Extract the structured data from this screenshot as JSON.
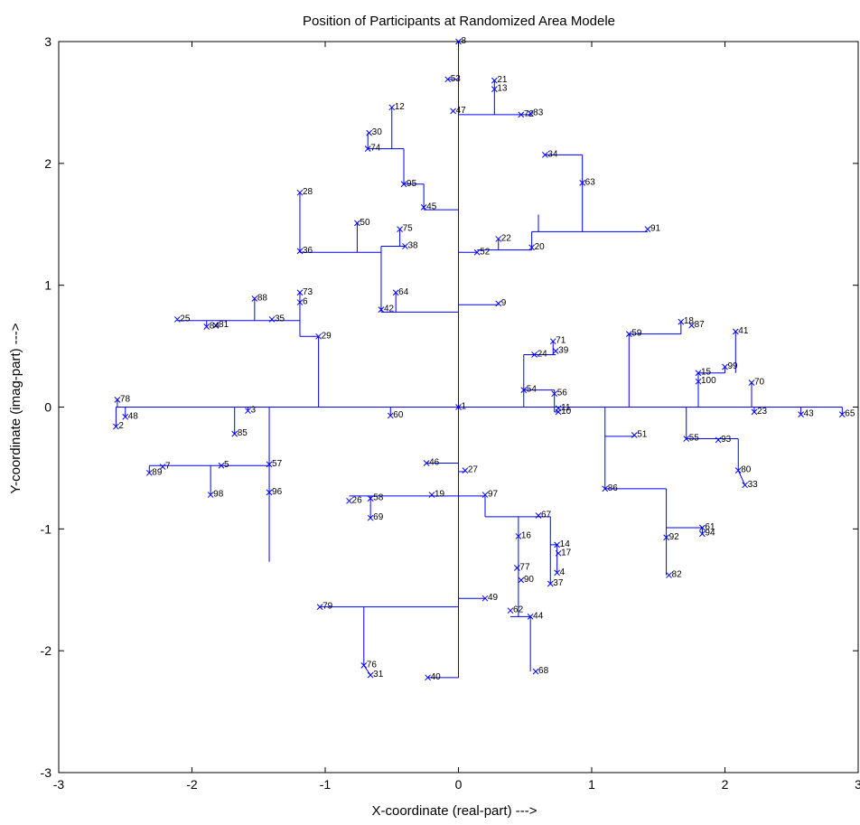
{
  "chart_data": {
    "type": "scatter",
    "title": "Position of Participants at Randomized Area Modele",
    "xlabel": "X-coordinate (real-part) --->",
    "ylabel": "Y-coordinate (imag-part) --->",
    "xlim": [
      -3,
      3
    ],
    "ylim": [
      -3,
      3
    ],
    "xticks": [
      "-3",
      "-2",
      "-1",
      "0",
      "1",
      "2",
      "3"
    ],
    "yticks": [
      "-3",
      "-2",
      "-1",
      "0",
      "1",
      "2",
      "3"
    ],
    "grid": false,
    "marker": "x",
    "series_color": "#0000ff",
    "nodes": [
      {
        "id": "1",
        "x": 0.0,
        "y": 0.0
      },
      {
        "id": "2",
        "x": -2.57,
        "y": -0.16
      },
      {
        "id": "3",
        "x": -1.58,
        "y": -0.03
      },
      {
        "id": "4",
        "x": 0.74,
        "y": -1.36
      },
      {
        "id": "5",
        "x": -1.78,
        "y": -0.48
      },
      {
        "id": "6",
        "x": -1.19,
        "y": 0.86
      },
      {
        "id": "7",
        "x": -2.22,
        "y": -0.49
      },
      {
        "id": "8",
        "x": 0.0,
        "y": 3.0
      },
      {
        "id": "9",
        "x": 0.3,
        "y": 0.85
      },
      {
        "id": "10",
        "x": 0.75,
        "y": -0.04
      },
      {
        "id": "11",
        "x": 0.75,
        "y": -0.01
      },
      {
        "id": "12",
        "x": -0.5,
        "y": 2.46
      },
      {
        "id": "13",
        "x": 0.27,
        "y": 2.61
      },
      {
        "id": "14",
        "x": 0.74,
        "y": -1.13
      },
      {
        "id": "15",
        "x": 1.8,
        "y": 0.28
      },
      {
        "id": "16",
        "x": 0.45,
        "y": -1.06
      },
      {
        "id": "17",
        "x": 0.75,
        "y": -1.2
      },
      {
        "id": "18",
        "x": 1.67,
        "y": 0.7
      },
      {
        "id": "19",
        "x": -0.2,
        "y": -0.72
      },
      {
        "id": "20",
        "x": 0.55,
        "y": 1.31
      },
      {
        "id": "21",
        "x": 0.27,
        "y": 2.68
      },
      {
        "id": "22",
        "x": 0.3,
        "y": 1.38
      },
      {
        "id": "23",
        "x": 2.22,
        "y": -0.04
      },
      {
        "id": "24",
        "x": 0.57,
        "y": 0.43
      },
      {
        "id": "25",
        "x": -2.11,
        "y": 0.72
      },
      {
        "id": "26",
        "x": -0.82,
        "y": -0.77
      },
      {
        "id": "27",
        "x": 0.05,
        "y": -0.52
      },
      {
        "id": "28",
        "x": -1.19,
        "y": 1.76
      },
      {
        "id": "29",
        "x": -1.05,
        "y": 0.58
      },
      {
        "id": "30",
        "x": -0.67,
        "y": 2.25
      },
      {
        "id": "31",
        "x": -0.66,
        "y": -2.2
      },
      {
        "id": "33",
        "x": 2.15,
        "y": -0.64
      },
      {
        "id": "34",
        "x": 0.65,
        "y": 2.07
      },
      {
        "id": "35",
        "x": -1.4,
        "y": 0.72
      },
      {
        "id": "36",
        "x": -1.19,
        "y": 1.28
      },
      {
        "id": "37",
        "x": 0.69,
        "y": -1.45
      },
      {
        "id": "38",
        "x": -0.4,
        "y": 1.32
      },
      {
        "id": "39",
        "x": 0.73,
        "y": 0.46
      },
      {
        "id": "40",
        "x": -0.23,
        "y": -2.22
      },
      {
        "id": "41",
        "x": 2.08,
        "y": 0.62
      },
      {
        "id": "42",
        "x": -0.58,
        "y": 0.8
      },
      {
        "id": "43",
        "x": 2.57,
        "y": -0.06
      },
      {
        "id": "44",
        "x": 0.54,
        "y": -1.72
      },
      {
        "id": "45",
        "x": -0.26,
        "y": 1.64
      },
      {
        "id": "46",
        "x": -0.24,
        "y": -0.46
      },
      {
        "id": "47",
        "x": -0.04,
        "y": 2.43
      },
      {
        "id": "48",
        "x": -2.5,
        "y": -0.08
      },
      {
        "id": "49",
        "x": 0.2,
        "y": -1.57
      },
      {
        "id": "50",
        "x": -0.76,
        "y": 1.51
      },
      {
        "id": "51",
        "x": 1.32,
        "y": -0.23
      },
      {
        "id": "52",
        "x": 0.14,
        "y": 1.27
      },
      {
        "id": "53",
        "x": -0.08,
        "y": 2.69
      },
      {
        "id": "54",
        "x": 0.49,
        "y": 0.14
      },
      {
        "id": "55",
        "x": 1.71,
        "y": -0.26
      },
      {
        "id": "56",
        "x": 0.72,
        "y": 0.11
      },
      {
        "id": "57",
        "x": -1.42,
        "y": -0.47
      },
      {
        "id": "58",
        "x": -0.66,
        "y": -0.75
      },
      {
        "id": "59",
        "x": 1.28,
        "y": 0.6
      },
      {
        "id": "60",
        "x": -0.51,
        "y": -0.07
      },
      {
        "id": "61",
        "x": 1.83,
        "y": -0.99
      },
      {
        "id": "62",
        "x": 0.39,
        "y": -1.67
      },
      {
        "id": "63",
        "x": 0.93,
        "y": 1.84
      },
      {
        "id": "64",
        "x": -0.47,
        "y": 0.94
      },
      {
        "id": "65",
        "x": 2.88,
        "y": -0.06
      },
      {
        "id": "67",
        "x": 0.6,
        "y": -0.89
      },
      {
        "id": "68",
        "x": 0.58,
        "y": -2.17
      },
      {
        "id": "69",
        "x": -0.66,
        "y": -0.91
      },
      {
        "id": "70",
        "x": 2.2,
        "y": 0.2
      },
      {
        "id": "71",
        "x": 0.71,
        "y": 0.54
      },
      {
        "id": "72",
        "x": 0.47,
        "y": 2.4
      },
      {
        "id": "73",
        "x": -1.19,
        "y": 0.94
      },
      {
        "id": "74",
        "x": -0.68,
        "y": 2.12
      },
      {
        "id": "75",
        "x": -0.44,
        "y": 1.46
      },
      {
        "id": "76",
        "x": -0.71,
        "y": -2.12
      },
      {
        "id": "77",
        "x": 0.44,
        "y": -1.32
      },
      {
        "id": "78",
        "x": -2.56,
        "y": 0.06
      },
      {
        "id": "79",
        "x": -1.04,
        "y": -1.64
      },
      {
        "id": "80",
        "x": 2.1,
        "y": -0.52
      },
      {
        "id": "81",
        "x": -1.82,
        "y": 0.67
      },
      {
        "id": "82",
        "x": 1.58,
        "y": -1.38
      },
      {
        "id": "83",
        "x": 0.54,
        "y": 2.41
      },
      {
        "id": "84",
        "x": -1.89,
        "y": 0.66
      },
      {
        "id": "85",
        "x": -1.68,
        "y": -0.22
      },
      {
        "id": "86",
        "x": 1.1,
        "y": -0.67
      },
      {
        "id": "87",
        "x": 1.75,
        "y": 0.67
      },
      {
        "id": "88",
        "x": -1.53,
        "y": 0.89
      },
      {
        "id": "89",
        "x": -2.32,
        "y": -0.54
      },
      {
        "id": "90",
        "x": 0.47,
        "y": -1.42
      },
      {
        "id": "91",
        "x": 1.42,
        "y": 1.46
      },
      {
        "id": "92",
        "x": 1.56,
        "y": -1.07
      },
      {
        "id": "93",
        "x": 1.95,
        "y": -0.27
      },
      {
        "id": "94",
        "x": 1.83,
        "y": -1.04
      },
      {
        "id": "95",
        "x": -0.41,
        "y": 1.83
      },
      {
        "id": "96",
        "x": -1.42,
        "y": -0.7
      },
      {
        "id": "97",
        "x": 0.2,
        "y": -0.72
      },
      {
        "id": "98",
        "x": -1.86,
        "y": -0.72
      },
      {
        "id": "99",
        "x": 2.0,
        "y": 0.33
      },
      {
        "id": "100",
        "x": 1.8,
        "y": 0.21
      }
    ],
    "lines": [
      [
        [
          0,
          0
        ],
        [
          0,
          3
        ]
      ],
      [
        [
          0,
          0
        ],
        [
          0,
          -2.22
        ]
      ],
      [
        [
          -2.57,
          0
        ],
        [
          2.88,
          0
        ]
      ],
      [
        [
          -0.08,
          2.69
        ],
        [
          0,
          2.69
        ]
      ],
      [
        [
          0.27,
          2.4
        ],
        [
          0.27,
          2.68
        ]
      ],
      [
        [
          0,
          2.4
        ],
        [
          0.54,
          2.4
        ]
      ],
      [
        [
          -0.26,
          1.62
        ],
        [
          0,
          1.62
        ]
      ],
      [
        [
          -0.26,
          1.62
        ],
        [
          -0.26,
          1.83
        ]
      ],
      [
        [
          -0.41,
          1.83
        ],
        [
          -0.26,
          1.83
        ]
      ],
      [
        [
          -0.41,
          1.83
        ],
        [
          -0.41,
          2.12
        ]
      ],
      [
        [
          -0.68,
          2.12
        ],
        [
          -0.41,
          2.12
        ]
      ],
      [
        [
          -0.68,
          2.12
        ],
        [
          -0.68,
          2.25
        ]
      ],
      [
        [
          -0.5,
          2.12
        ],
        [
          -0.5,
          2.46
        ]
      ],
      [
        [
          0,
          1.27
        ],
        [
          0.14,
          1.27
        ]
      ],
      [
        [
          0.14,
          1.29
        ],
        [
          0.55,
          1.29
        ]
      ],
      [
        [
          0.3,
          1.29
        ],
        [
          0.3,
          1.38
        ]
      ],
      [
        [
          0.55,
          1.29
        ],
        [
          0.55,
          1.44
        ]
      ],
      [
        [
          0.55,
          1.44
        ],
        [
          1.42,
          1.44
        ]
      ],
      [
        [
          0.6,
          1.44
        ],
        [
          0.6,
          1.58
        ]
      ],
      [
        [
          0.93,
          1.44
        ],
        [
          0.93,
          2.07
        ]
      ],
      [
        [
          0.65,
          2.07
        ],
        [
          0.93,
          2.07
        ]
      ],
      [
        [
          0,
          0.84
        ],
        [
          0.3,
          0.84
        ]
      ],
      [
        [
          -0.58,
          0.78
        ],
        [
          0,
          0.78
        ]
      ],
      [
        [
          -0.58,
          0.78
        ],
        [
          -0.58,
          1.32
        ]
      ],
      [
        [
          -0.47,
          0.78
        ],
        [
          -0.47,
          0.94
        ]
      ],
      [
        [
          -0.58,
          1.32
        ],
        [
          -0.4,
          1.32
        ]
      ],
      [
        [
          -0.44,
          1.32
        ],
        [
          -0.44,
          1.46
        ]
      ],
      [
        [
          -1.19,
          1.27
        ],
        [
          -0.58,
          1.27
        ]
      ],
      [
        [
          -1.19,
          1.27
        ],
        [
          -1.19,
          1.76
        ]
      ],
      [
        [
          -0.76,
          1.27
        ],
        [
          -0.76,
          1.51
        ]
      ],
      [
        [
          -1.05,
          0
        ],
        [
          -1.05,
          0.58
        ]
      ],
      [
        [
          -1.19,
          0.58
        ],
        [
          -1.05,
          0.58
        ]
      ],
      [
        [
          -1.19,
          0.58
        ],
        [
          -1.19,
          0.94
        ]
      ],
      [
        [
          -2.11,
          0.71
        ],
        [
          -1.19,
          0.71
        ]
      ],
      [
        [
          -1.89,
          0.66
        ],
        [
          -1.89,
          0.71
        ]
      ],
      [
        [
          -1.53,
          0.71
        ],
        [
          -1.53,
          0.89
        ]
      ],
      [
        [
          0,
          -0.53
        ],
        [
          0.05,
          -0.53
        ]
      ],
      [
        [
          -0.24,
          -0.46
        ],
        [
          0,
          -0.46
        ]
      ],
      [
        [
          -0.82,
          -0.73
        ],
        [
          0.2,
          -0.73
        ]
      ],
      [
        [
          -0.66,
          -0.73
        ],
        [
          -0.66,
          -0.91
        ]
      ],
      [
        [
          0.2,
          -0.73
        ],
        [
          0.2,
          -0.9
        ]
      ],
      [
        [
          0.2,
          -0.9
        ],
        [
          0.69,
          -0.9
        ]
      ],
      [
        [
          0.45,
          -0.9
        ],
        [
          0.45,
          -1.72
        ]
      ],
      [
        [
          0.69,
          -0.9
        ],
        [
          0.69,
          -1.45
        ]
      ],
      [
        [
          0.69,
          -1.13
        ],
        [
          0.74,
          -1.13
        ]
      ],
      [
        [
          0.74,
          -1.13
        ],
        [
          0.74,
          -1.36
        ]
      ],
      [
        [
          0,
          -1.57
        ],
        [
          0.2,
          -1.57
        ]
      ],
      [
        [
          -1.04,
          -1.64
        ],
        [
          0,
          -1.64
        ]
      ],
      [
        [
          -0.71,
          -1.64
        ],
        [
          -0.71,
          -2.12
        ]
      ],
      [
        [
          -0.71,
          -2.12
        ],
        [
          -0.66,
          -2.2
        ]
      ],
      [
        [
          -0.23,
          -2.22
        ],
        [
          0,
          -2.22
        ]
      ],
      [
        [
          0.39,
          -1.72
        ],
        [
          0.54,
          -1.72
        ]
      ],
      [
        [
          0.54,
          -1.72
        ],
        [
          0.54,
          -2.17
        ]
      ],
      [
        [
          -2.56,
          0
        ],
        [
          -2.56,
          0.06
        ]
      ],
      [
        [
          -2.57,
          -0.16
        ],
        [
          -2.57,
          0
        ]
      ],
      [
        [
          -2.5,
          -0.08
        ],
        [
          -2.5,
          0
        ]
      ],
      [
        [
          -1.58,
          -0.03
        ],
        [
          -1.58,
          0
        ]
      ],
      [
        [
          -1.68,
          -0.22
        ],
        [
          -1.68,
          0
        ]
      ],
      [
        [
          -1.42,
          0
        ],
        [
          -1.42,
          -1.27
        ]
      ],
      [
        [
          -2.32,
          -0.48
        ],
        [
          -1.42,
          -0.48
        ]
      ],
      [
        [
          -2.32,
          -0.48
        ],
        [
          -2.32,
          -0.54
        ]
      ],
      [
        [
          -1.86,
          -0.48
        ],
        [
          -1.86,
          -0.72
        ]
      ],
      [
        [
          -0.51,
          0
        ],
        [
          -0.51,
          -0.07
        ]
      ],
      [
        [
          0.49,
          0
        ],
        [
          0.49,
          0.43
        ]
      ],
      [
        [
          0.49,
          0.43
        ],
        [
          0.73,
          0.43
        ]
      ],
      [
        [
          0.71,
          0.43
        ],
        [
          0.71,
          0.54
        ]
      ],
      [
        [
          0.49,
          0.14
        ],
        [
          0.72,
          0.14
        ]
      ],
      [
        [
          0.72,
          0.14
        ],
        [
          0.72,
          -0.04
        ]
      ],
      [
        [
          0.72,
          -0.04
        ],
        [
          0.75,
          -0.04
        ]
      ],
      [
        [
          1.1,
          0
        ],
        [
          1.1,
          -0.67
        ]
      ],
      [
        [
          1.1,
          -0.24
        ],
        [
          1.32,
          -0.24
        ]
      ],
      [
        [
          1.1,
          -0.67
        ],
        [
          1.56,
          -0.67
        ]
      ],
      [
        [
          1.56,
          -0.67
        ],
        [
          1.56,
          -1.38
        ]
      ],
      [
        [
          1.56,
          -0.99
        ],
        [
          1.83,
          -0.99
        ]
      ],
      [
        [
          1.83,
          -0.99
        ],
        [
          1.83,
          -1.04
        ]
      ],
      [
        [
          1.28,
          0
        ],
        [
          1.28,
          0.6
        ]
      ],
      [
        [
          1.28,
          0.6
        ],
        [
          1.67,
          0.6
        ]
      ],
      [
        [
          1.67,
          0.6
        ],
        [
          1.67,
          0.7
        ]
      ],
      [
        [
          1.8,
          0
        ],
        [
          1.8,
          0.28
        ]
      ],
      [
        [
          1.8,
          0.28
        ],
        [
          2.0,
          0.28
        ]
      ],
      [
        [
          2.0,
          0.28
        ],
        [
          2.0,
          0.33
        ]
      ],
      [
        [
          2.08,
          0.28
        ],
        [
          2.08,
          0.62
        ]
      ],
      [
        [
          2.2,
          0
        ],
        [
          2.2,
          0.2
        ]
      ],
      [
        [
          1.71,
          0
        ],
        [
          1.71,
          -0.26
        ]
      ],
      [
        [
          1.71,
          -0.26
        ],
        [
          2.1,
          -0.26
        ]
      ],
      [
        [
          2.1,
          -0.26
        ],
        [
          2.1,
          -0.52
        ]
      ],
      [
        [
          2.1,
          -0.52
        ],
        [
          2.15,
          -0.64
        ]
      ],
      [
        [
          2.22,
          0
        ],
        [
          2.22,
          -0.04
        ]
      ],
      [
        [
          2.57,
          0
        ],
        [
          2.57,
          -0.06
        ]
      ],
      [
        [
          2.88,
          0
        ],
        [
          2.88,
          -0.06
        ]
      ]
    ]
  }
}
